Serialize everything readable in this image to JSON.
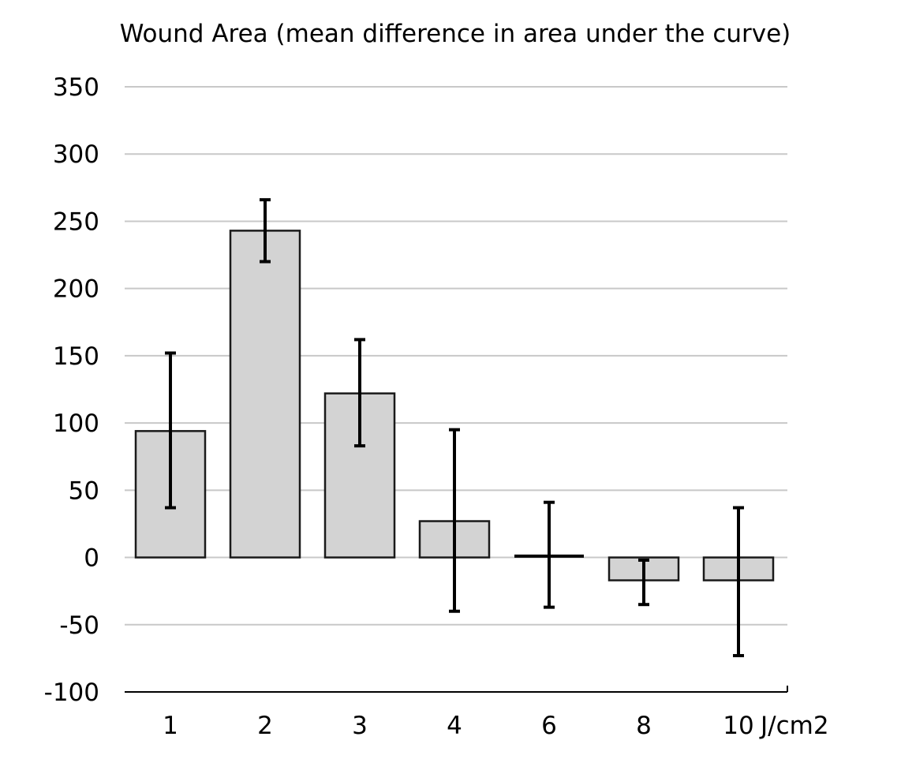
{
  "chart_data": {
    "type": "bar",
    "title": "Wound Area (mean difference in area under the curve)",
    "xlabel": "J/cm2",
    "ylabel": "",
    "categories": [
      "1",
      "2",
      "3",
      "4",
      "6",
      "8",
      "10"
    ],
    "values": [
      94,
      243,
      122,
      27,
      1,
      -17,
      -17
    ],
    "error_low": [
      37,
      220,
      83,
      -40,
      -37,
      -35,
      -73
    ],
    "error_high": [
      152,
      266,
      162,
      95,
      41,
      -2,
      37
    ],
    "ylim": [
      -100,
      350
    ],
    "yticks": [
      350,
      300,
      250,
      200,
      150,
      100,
      50,
      0,
      -50,
      -100
    ],
    "ytick_labels": [
      "350",
      "300",
      "250",
      "200",
      "150",
      "100",
      "50",
      "0",
      "-50",
      "-100"
    ],
    "grid": true,
    "legend": "none",
    "colors": {
      "bar_fill": "#d3d3d3",
      "bar_stroke": "#1a1a1a",
      "grid": "#c8c8c8",
      "errorbar": "#000000"
    }
  }
}
